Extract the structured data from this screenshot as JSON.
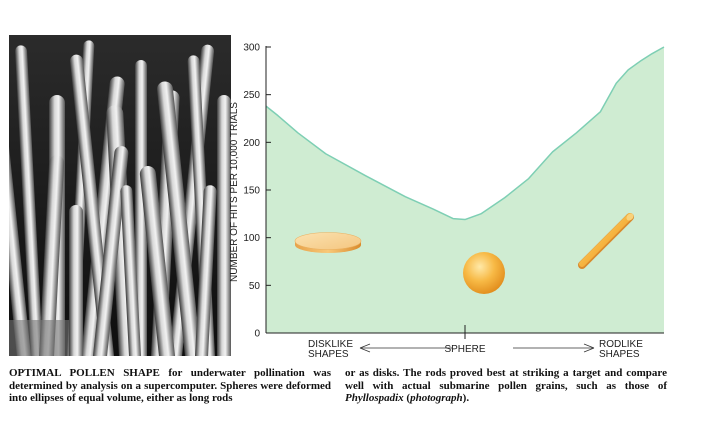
{
  "chart_data": {
    "type": "area",
    "title": "",
    "ylabel": "NUMBER OF HITS PER 10,000 TRIALS",
    "ylim": [
      0,
      300
    ],
    "yticks": [
      0,
      50,
      100,
      150,
      200,
      250,
      300
    ],
    "x_range": [
      0,
      1
    ],
    "xlabels": {
      "left": [
        "DISKLIKE",
        "SHAPES"
      ],
      "center": "SPHERE",
      "right": [
        "RODLIKE",
        "SHAPES"
      ]
    },
    "x": [
      0.0,
      0.03,
      0.08,
      0.15,
      0.25,
      0.35,
      0.42,
      0.47,
      0.5,
      0.54,
      0.6,
      0.66,
      0.72,
      0.78,
      0.84,
      0.88,
      0.91,
      0.94,
      0.97,
      1.0
    ],
    "values": [
      238,
      228,
      210,
      188,
      165,
      143,
      130,
      120,
      119,
      125,
      142,
      162,
      190,
      210,
      232,
      262,
      276,
      285,
      293,
      300
    ],
    "fill_color": "#cfecd2",
    "line_color": "#7ecfb4",
    "grid": false,
    "legend": "none",
    "annotations": [
      "disk-shape",
      "sphere-shape",
      "rod-shape"
    ]
  },
  "caption": {
    "col1_lead": "OPTIMAL POLLEN SHAPE",
    "col1_text": " for underwater pollination was determined by analysis on a supercomputer. Spheres were deformed into ellipses of equal volume, either as long rods",
    "col2_pre": "or as disks. The rods proved best at striking a target and compare well with actual submarine pollen grains, such as those of ",
    "col2_italic": "Phyllospadix",
    "col2_paren_open": " (",
    "col2_italic2": "photograph",
    "col2_post": ")."
  },
  "photo": {
    "subject": "Phyllospadix pollen grains micrograph"
  }
}
